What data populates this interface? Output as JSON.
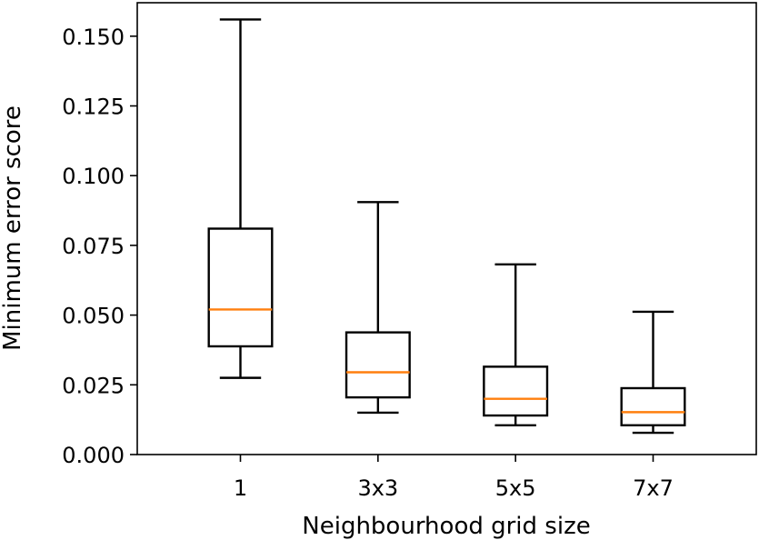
{
  "chart_data": {
    "type": "box",
    "title": "",
    "xlabel": "Neighbourhood grid size",
    "ylabel": "Minimum error score",
    "categories": [
      "1",
      "3x3",
      "5x5",
      "7x7"
    ],
    "ylim": [
      0.0,
      0.162
    ],
    "yticks": [
      "0.000",
      "0.025",
      "0.050",
      "0.075",
      "0.100",
      "0.125",
      "0.150"
    ],
    "grid": false,
    "boxes": [
      {
        "category": "1",
        "whisker_low": 0.0275,
        "q1": 0.0388,
        "median": 0.052,
        "q3": 0.081,
        "whisker_high": 0.156
      },
      {
        "category": "3x3",
        "whisker_low": 0.015,
        "q1": 0.0205,
        "median": 0.0295,
        "q3": 0.0438,
        "whisker_high": 0.0905
      },
      {
        "category": "5x5",
        "whisker_low": 0.0105,
        "q1": 0.014,
        "median": 0.02,
        "q3": 0.0315,
        "whisker_high": 0.0682
      },
      {
        "category": "7x7",
        "whisker_low": 0.0078,
        "q1": 0.0105,
        "median": 0.0152,
        "q3": 0.0238,
        "whisker_high": 0.0512
      }
    ],
    "colors": {
      "box": "#000000",
      "median": "#ff7f0e"
    }
  }
}
